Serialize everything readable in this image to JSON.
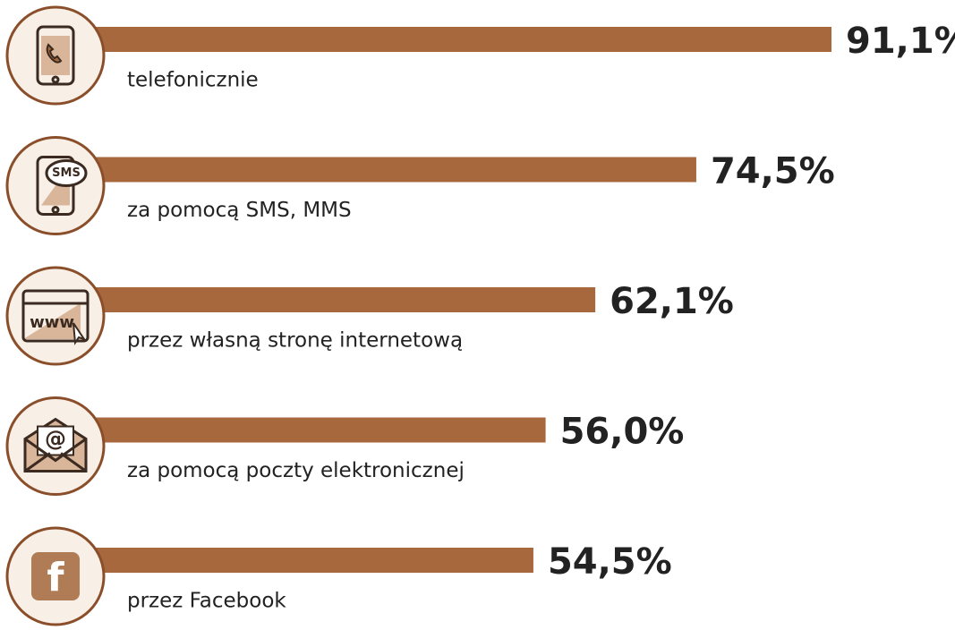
{
  "chart_data": {
    "type": "bar",
    "orientation": "horizontal",
    "categories": [
      "telefonicznie",
      "za pomocą SMS, MMS",
      "przez własną stronę internetową",
      "za pomocą poczty elektronicznej",
      "przez Facebook"
    ],
    "values": [
      91.1,
      74.5,
      62.1,
      56.0,
      54.5
    ],
    "value_labels": [
      "91,1%",
      "74,5%",
      "62,1%",
      "56,0%",
      "54,5%"
    ],
    "color": "#a8683d",
    "icon_labels": [
      "SMS",
      "www",
      "@",
      "f"
    ]
  }
}
